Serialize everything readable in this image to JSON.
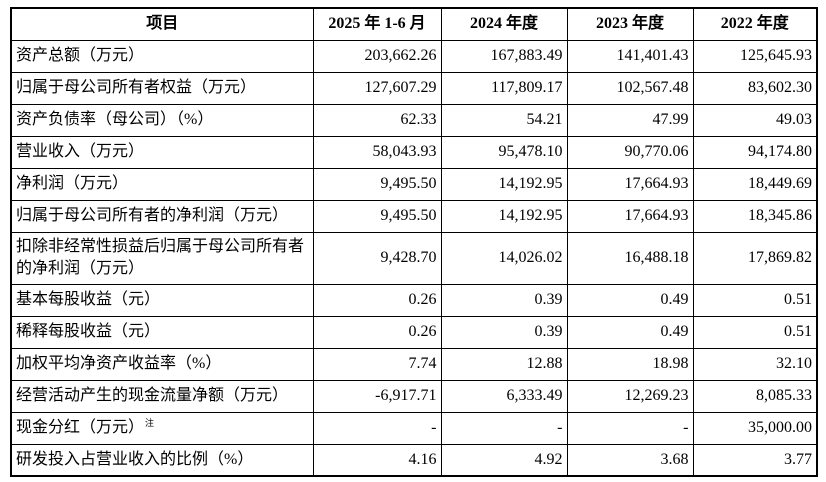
{
  "table": {
    "columns": [
      "项目",
      "2025 年 1-6 月",
      "2024 年度",
      "2023 年度",
      "2022 年度"
    ],
    "rows": [
      {
        "label": "资产总额（万元）",
        "values": [
          "203,662.26",
          "167,883.49",
          "141,401.43",
          "125,645.93"
        ]
      },
      {
        "label": "归属于母公司所有者权益（万元）",
        "values": [
          "127,607.29",
          "117,809.17",
          "102,567.48",
          "83,602.30"
        ]
      },
      {
        "label": "资产负债率（母公司）（%）",
        "values": [
          "62.33",
          "54.21",
          "47.99",
          "49.03"
        ]
      },
      {
        "label": "营业收入（万元）",
        "values": [
          "58,043.93",
          "95,478.10",
          "90,770.06",
          "94,174.80"
        ]
      },
      {
        "label": "净利润（万元）",
        "values": [
          "9,495.50",
          "14,192.95",
          "17,664.93",
          "18,449.69"
        ]
      },
      {
        "label": "归属于母公司所有者的净利润（万元）",
        "values": [
          "9,495.50",
          "14,192.95",
          "17,664.93",
          "18,345.86"
        ]
      },
      {
        "label": "扣除非经常性损益后归属于母公司所有者的净利润（万元）",
        "values": [
          "9,428.70",
          "14,026.02",
          "16,488.18",
          "17,869.82"
        ]
      },
      {
        "label": "基本每股收益（元）",
        "values": [
          "0.26",
          "0.39",
          "0.49",
          "0.51"
        ]
      },
      {
        "label": "稀释每股收益（元）",
        "values": [
          "0.26",
          "0.39",
          "0.49",
          "0.51"
        ]
      },
      {
        "label": "加权平均净资产收益率（%）",
        "values": [
          "7.74",
          "12.88",
          "18.98",
          "32.10"
        ]
      },
      {
        "label": "经营活动产生的现金流量净额（万元）",
        "values": [
          "-6,917.71",
          "6,333.49",
          "12,269.23",
          "8,085.33"
        ]
      },
      {
        "label": "现金分红（万元）",
        "note": "注",
        "values": [
          "-",
          "-",
          "-",
          "35,000.00"
        ]
      },
      {
        "label": "研发投入占营业收入的比例（%）",
        "values": [
          "4.16",
          "4.92",
          "3.68",
          "3.77"
        ]
      }
    ]
  }
}
